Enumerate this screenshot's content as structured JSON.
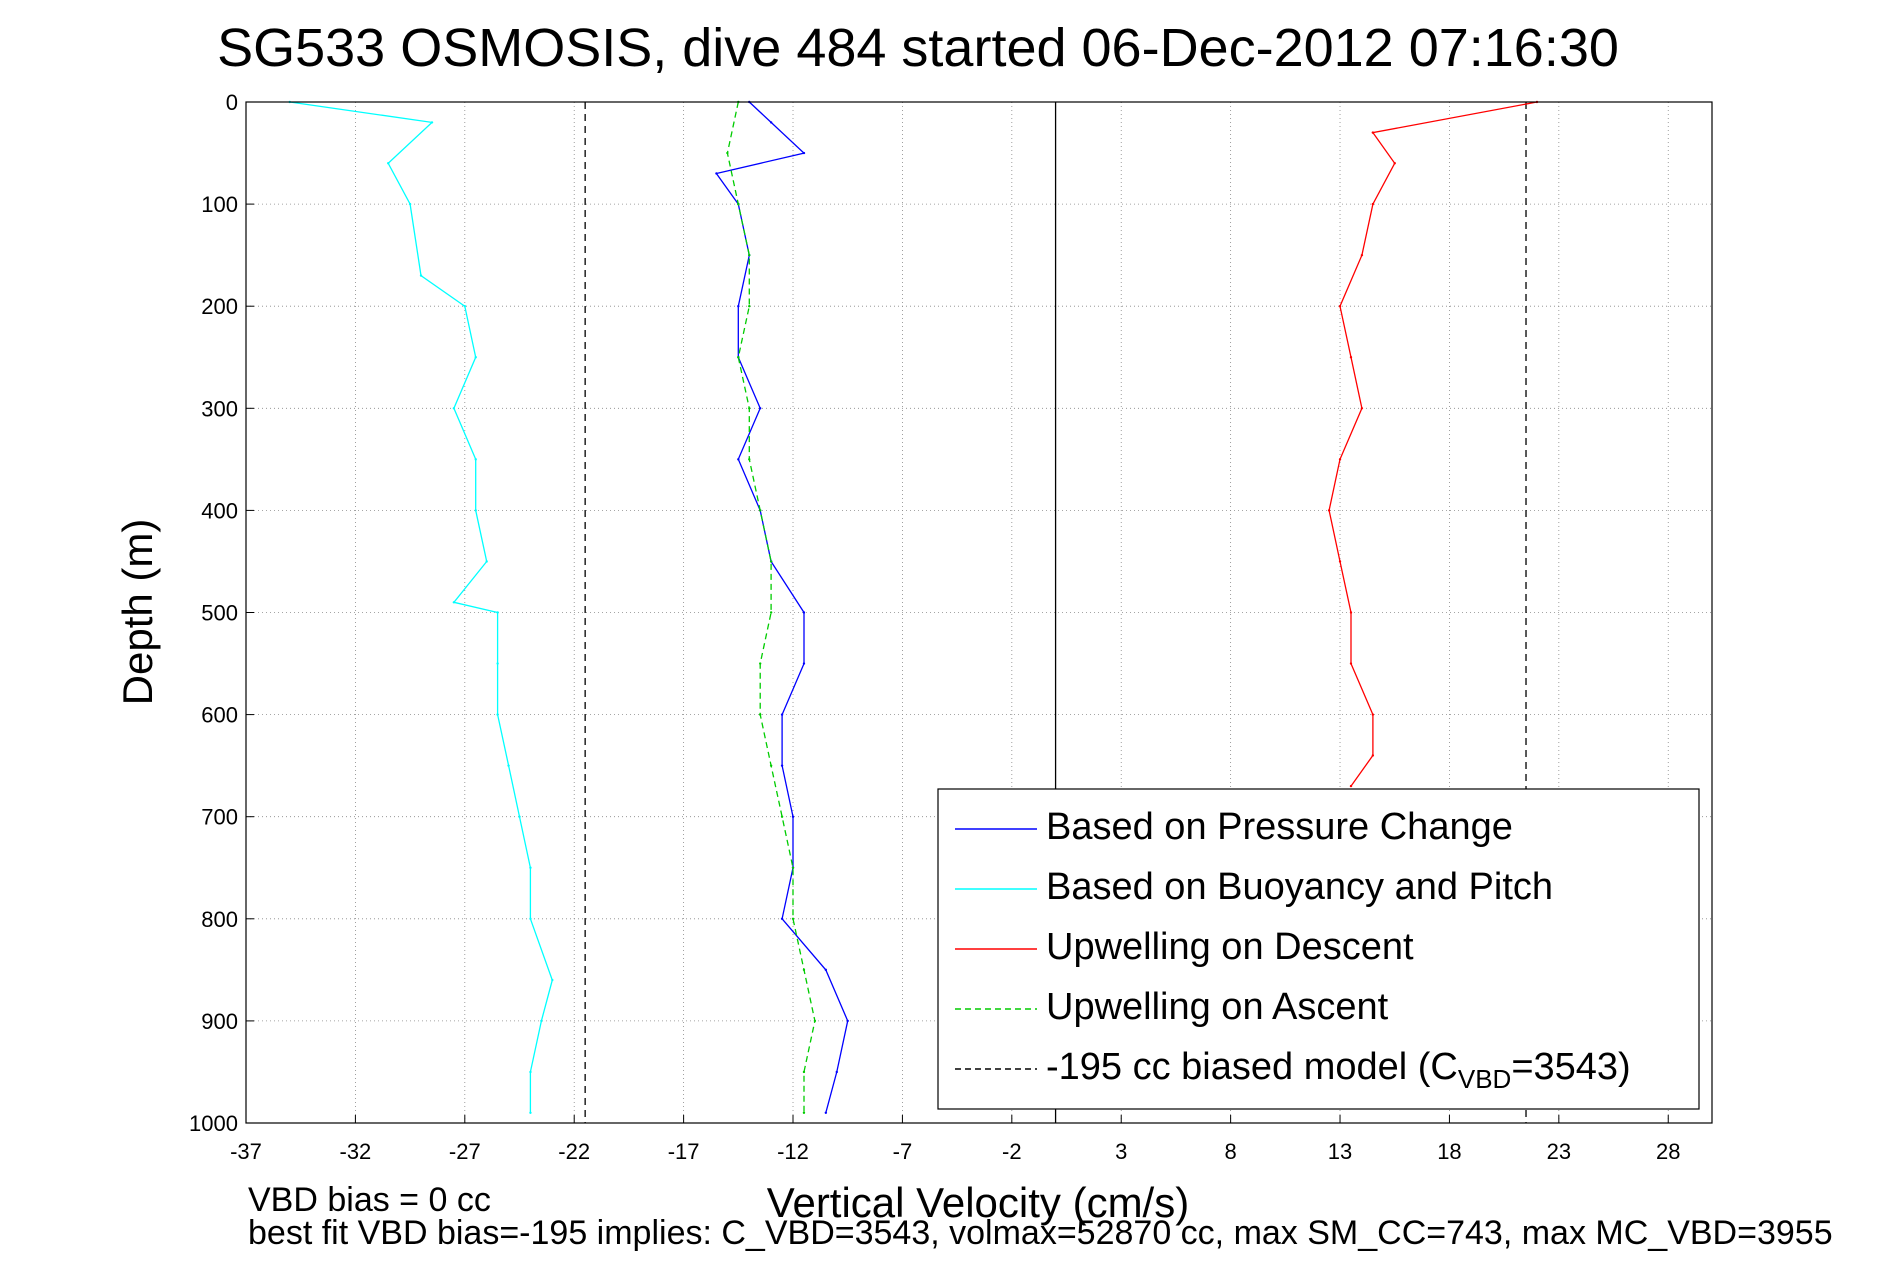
{
  "chart_data": {
    "type": "line",
    "title": "SG533 OSMOSIS, dive 484 started 06-Dec-2012 07:16:30",
    "xlabel": "Vertical Velocity (cm/s)",
    "ylabel": "Depth (m)",
    "xlim": [
      -37,
      30
    ],
    "ylim": [
      0,
      1000
    ],
    "y_reversed": true,
    "grid": true,
    "legend_position": "bottom-right",
    "xticks": [
      -37,
      -32,
      -27,
      -22,
      -17,
      -12,
      -7,
      -2,
      3,
      8,
      13,
      18,
      23,
      28
    ],
    "yticks": [
      0,
      100,
      200,
      300,
      400,
      500,
      600,
      700,
      800,
      900,
      1000
    ],
    "reference_lines": [
      {
        "x": -21.5,
        "style": "dashed",
        "color": "#000000"
      },
      {
        "x": 0,
        "style": "solid",
        "color": "#000000"
      },
      {
        "x": 21.5,
        "style": "dashed",
        "color": "#000000"
      }
    ],
    "series": [
      {
        "name": "Based on Pressure Change",
        "color": "#0000ff",
        "style": "solid",
        "depth": [
          0,
          20,
          50,
          70,
          100,
          150,
          200,
          250,
          300,
          350,
          400,
          450,
          500,
          550,
          600,
          650,
          700,
          750,
          800,
          850,
          900,
          950,
          990
        ],
        "velocity": [
          -14,
          -13,
          -11.5,
          -15.5,
          -14.5,
          -14,
          -14.5,
          -14.5,
          -13.5,
          -14.5,
          -13.5,
          -13,
          -11.5,
          -11.5,
          -12.5,
          -12.5,
          -12,
          -12,
          -12.5,
          -10.5,
          -9.5,
          -10,
          -10.5
        ]
      },
      {
        "name": "Based on Buoyancy and Pitch",
        "color": "#00ffff",
        "style": "solid",
        "depth": [
          0,
          20,
          60,
          100,
          170,
          200,
          250,
          300,
          350,
          400,
          450,
          490,
          500,
          550,
          600,
          650,
          700,
          750,
          800,
          860,
          900,
          950,
          990
        ],
        "velocity": [
          -35,
          -28.5,
          -30.5,
          -29.5,
          -29,
          -27,
          -26.5,
          -27.5,
          -26.5,
          -26.5,
          -26,
          -27.5,
          -25.5,
          -25.5,
          -25.5,
          -25,
          -24.5,
          -24,
          -24,
          -23,
          -23.5,
          -24,
          -24
        ]
      },
      {
        "name": "Upwelling on Descent",
        "color": "#ff0000",
        "style": "solid",
        "depth": [
          0,
          30,
          60,
          100,
          150,
          200,
          250,
          300,
          350,
          400,
          450,
          500,
          550,
          600,
          640,
          670
        ],
        "velocity": [
          22,
          14.5,
          15.5,
          14.5,
          14,
          13,
          13.5,
          14,
          13,
          12.5,
          13,
          13.5,
          13.5,
          14.5,
          14.5,
          13.5
        ]
      },
      {
        "name": "Upwelling on Ascent",
        "color": "#00cc00",
        "style": "dashed",
        "depth": [
          0,
          50,
          100,
          150,
          200,
          250,
          300,
          350,
          400,
          450,
          500,
          550,
          600,
          650,
          700,
          750,
          800,
          850,
          900,
          950,
          990
        ],
        "velocity": [
          -14.5,
          -15,
          -14.5,
          -14,
          -14,
          -14.5,
          -14,
          -14,
          -13.5,
          -13,
          -13,
          -13.5,
          -13.5,
          -13,
          -12.5,
          -12,
          -12,
          -11.5,
          -11,
          -11.5,
          -11.5
        ]
      },
      {
        "name": "-195 cc biased model (C_VBD=3543)",
        "color": "#000000",
        "style": "dashed",
        "depth": [],
        "velocity": []
      }
    ],
    "legend": [
      {
        "key": "pressure",
        "text": "Based on Pressure Change",
        "color": "#0000ff",
        "dash": ""
      },
      {
        "key": "buoyancy",
        "text": "Based on Buoyancy and Pitch",
        "color": "#00ffff",
        "dash": ""
      },
      {
        "key": "descent",
        "text": "Upwelling on Descent",
        "color": "#ff0000",
        "dash": ""
      },
      {
        "key": "ascent",
        "text": "Upwelling on Ascent",
        "color": "#00cc00",
        "dash": "6,4"
      }
    ],
    "legend_model": {
      "prefix": "-195 cc biased model (C",
      "subscript": "VBD",
      "suffix": "=3543)",
      "color": "#000000",
      "dash": "6,4"
    }
  },
  "footer": {
    "line1": "VBD bias = 0 cc",
    "line2": "best fit VBD bias=-195 implies: C_VBD=3543, volmax=52870 cc, max SM_CC=743, max MC_VBD=3955"
  }
}
